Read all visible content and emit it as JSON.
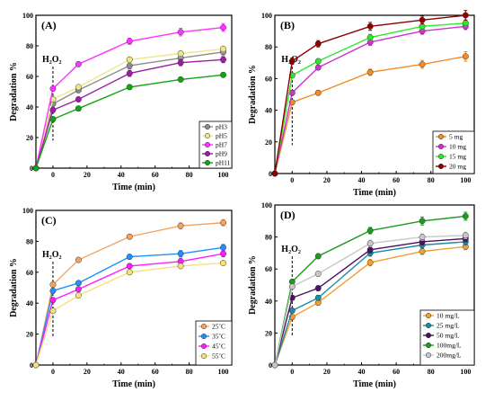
{
  "chart_data": [
    {
      "panel": "(A)",
      "type": "line",
      "xlabel": "Time (min)",
      "ylabel": "Degradation %",
      "xlim": [
        -10,
        105
      ],
      "ylim": [
        0,
        100
      ],
      "xticks": [
        0,
        20,
        40,
        60,
        80,
        100
      ],
      "yticks": [
        0,
        20,
        40,
        60,
        80,
        100
      ],
      "annotation": "H₂O₂",
      "annotation_x": 0,
      "legend_position": "bottom-right",
      "x": [
        -10,
        0,
        15,
        45,
        75,
        100
      ],
      "series": [
        {
          "name": "pH3",
          "color": "#8c8c8c",
          "values": [
            0,
            42,
            51,
            67,
            72,
            76
          ],
          "errors": [
            0,
            1.5,
            1.5,
            2,
            2,
            2
          ]
        },
        {
          "name": "pH5",
          "color": "#f0e68c",
          "values": [
            0,
            45,
            53,
            71,
            75,
            78
          ],
          "errors": [
            0,
            1.5,
            1.5,
            2,
            2,
            2
          ]
        },
        {
          "name": "pH7",
          "color": "#ff33ff",
          "values": [
            0,
            52,
            68,
            83,
            89,
            92
          ],
          "errors": [
            0,
            1.5,
            1.5,
            2,
            2.5,
            2.5
          ]
        },
        {
          "name": "pH9",
          "color": "#9b1fa3",
          "values": [
            0,
            38,
            45,
            62,
            69,
            71
          ],
          "errors": [
            0,
            1.5,
            1.5,
            2,
            2,
            2
          ]
        },
        {
          "name": "pH11",
          "color": "#12a512",
          "values": [
            0,
            32,
            39,
            53,
            58,
            61
          ],
          "errors": [
            0,
            1.5,
            1.5,
            1.5,
            1.5,
            1.5
          ]
        }
      ]
    },
    {
      "panel": "(B)",
      "type": "line",
      "xlabel": "Time (min)",
      "ylabel": "Degradation %",
      "xlim": [
        -10,
        105
      ],
      "ylim": [
        0,
        100
      ],
      "xticks": [
        0,
        20,
        40,
        60,
        80,
        100
      ],
      "yticks": [
        0,
        20,
        40,
        60,
        80,
        100
      ],
      "annotation": "H₂O₂",
      "annotation_x": 0,
      "legend_position": "bottom-right",
      "x": [
        -10,
        0,
        15,
        45,
        75,
        100
      ],
      "series": [
        {
          "name": "5 mg",
          "color": "#f28c28",
          "values": [
            0,
            45,
            51,
            64,
            69,
            74
          ],
          "errors": [
            0,
            1.5,
            1.5,
            2,
            2.5,
            3
          ]
        },
        {
          "name": "10 mg",
          "color": "#cc33cc",
          "values": [
            0,
            51,
            67,
            83,
            90,
            93
          ],
          "errors": [
            0,
            1.5,
            1.5,
            2,
            2,
            2
          ]
        },
        {
          "name": "15 mg",
          "color": "#2ee82e",
          "values": [
            0,
            62,
            71,
            86,
            93,
            95
          ],
          "errors": [
            0,
            1.5,
            1.5,
            2,
            2,
            2
          ]
        },
        {
          "name": "20 mg",
          "color": "#8b0000",
          "values": [
            0,
            71,
            82,
            93,
            97,
            100
          ],
          "errors": [
            0,
            2,
            2,
            2.5,
            2.5,
            3
          ]
        }
      ]
    },
    {
      "panel": "(C)",
      "type": "line",
      "xlabel": "Time (min)",
      "ylabel": "Degradation %",
      "xlim": [
        -10,
        105
      ],
      "ylim": [
        0,
        100
      ],
      "xticks": [
        0,
        20,
        40,
        60,
        80,
        100
      ],
      "yticks": [
        0,
        20,
        40,
        60,
        80,
        100
      ],
      "annotation": "H₂O₂",
      "annotation_x": 0,
      "legend_position": "bottom-right",
      "x": [
        -10,
        0,
        15,
        45,
        75,
        100
      ],
      "series": [
        {
          "name": "25˚C",
          "color": "#f4a460",
          "values": [
            0,
            52,
            68,
            83,
            90,
            92
          ],
          "errors": [
            0,
            1.5,
            1.5,
            1.5,
            2,
            2
          ]
        },
        {
          "name": "35˚C",
          "color": "#1e90ff",
          "values": [
            0,
            48,
            53,
            70,
            72,
            76
          ],
          "errors": [
            0,
            1.5,
            1.5,
            1.5,
            2,
            2
          ]
        },
        {
          "name": "45˚C",
          "color": "#ff1aff",
          "values": [
            0,
            42,
            49,
            64,
            67,
            72
          ],
          "errors": [
            0,
            1.5,
            1.5,
            1.5,
            2,
            2
          ]
        },
        {
          "name": "55˚C",
          "color": "#f4e27a",
          "values": [
            0,
            35,
            45,
            60,
            64,
            66
          ],
          "errors": [
            0,
            1.5,
            1.5,
            1.5,
            1.5,
            1.5
          ]
        }
      ]
    },
    {
      "panel": "(D)",
      "type": "line",
      "xlabel": "Time (min)",
      "ylabel": "Degradation %",
      "xlim": [
        -10,
        105
      ],
      "ylim": [
        0,
        100
      ],
      "xticks": [
        0,
        20,
        40,
        60,
        80,
        100
      ],
      "yticks": [
        0,
        20,
        40,
        60,
        80,
        100
      ],
      "annotation": "H₂O₂",
      "annotation_x": 0,
      "legend_position": "bottom-right",
      "x": [
        -10,
        0,
        15,
        45,
        75,
        100
      ],
      "series": [
        {
          "name": "10 mg/L",
          "color": "#f0a030",
          "values": [
            0,
            30,
            39,
            64,
            71,
            74
          ],
          "errors": [
            0,
            1.5,
            1.5,
            2,
            2,
            2
          ]
        },
        {
          "name": "25 mg/L",
          "color": "#1e8ba0",
          "values": [
            0,
            34,
            42,
            70,
            75,
            77
          ],
          "errors": [
            0,
            1.5,
            1.5,
            2,
            2,
            2
          ]
        },
        {
          "name": "50 mg/L",
          "color": "#4b1060",
          "values": [
            0,
            42,
            48,
            72,
            77,
            79
          ],
          "errors": [
            0,
            1.5,
            1.5,
            2,
            2,
            2
          ]
        },
        {
          "name": "100mg/L",
          "color": "#1f9a1f",
          "values": [
            0,
            52,
            68,
            84,
            90,
            93
          ],
          "errors": [
            0,
            1.5,
            1.5,
            2,
            2.5,
            2.5
          ]
        },
        {
          "name": "200mg/L",
          "color": "#c8c8c8",
          "values": [
            0,
            49,
            57,
            76,
            80,
            81
          ],
          "errors": [
            0,
            1.5,
            1.5,
            2,
            2,
            2
          ]
        }
      ]
    }
  ]
}
